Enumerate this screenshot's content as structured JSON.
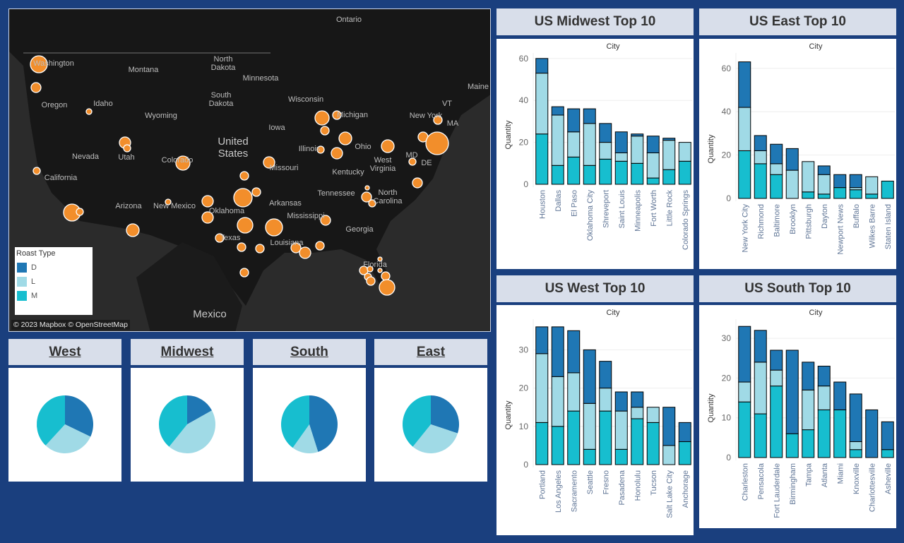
{
  "colors": {
    "background": "#1a3f7e",
    "D": "#1f77b4",
    "L": "#a0dae6",
    "M": "#17becf",
    "marker": "#f28e2b"
  },
  "map": {
    "labels": [
      "Ontario",
      "Washington",
      "Montana",
      "North Dakota",
      "Minnesota",
      "Wisconsin",
      "Michigan",
      "Oregon",
      "Idaho",
      "Wyoming",
      "South Dakota",
      "Iowa",
      "Nevada",
      "Utah",
      "Colorado",
      "Illinois",
      "Ohio",
      "West Virginia",
      "Kentucky",
      "Missouri",
      "California",
      "Tennessee",
      "North Carolina",
      "Arkansas",
      "Arizona",
      "New Mexico",
      "Oklahoma",
      "Mississippi",
      "Georgia",
      "Texas",
      "Louisiana",
      "Florida",
      "New York",
      "VT",
      "MA",
      "MD",
      "DE",
      "Maine",
      "Mexico"
    ],
    "country_label": "United States",
    "legend": {
      "title": "Roast Type",
      "items": [
        "D",
        "L",
        "M"
      ]
    },
    "attribution": "© 2023 Mapbox © OpenStreetMap"
  },
  "pies": [
    {
      "title": "West",
      "shares": {
        "D": 0.32,
        "L": 0.3,
        "M": 0.38
      }
    },
    {
      "title": "Midwest",
      "shares": {
        "D": 0.17,
        "L": 0.44,
        "M": 0.39
      }
    },
    {
      "title": "South",
      "shares": {
        "D": 0.45,
        "L": 0.15,
        "M": 0.4
      }
    },
    {
      "title": "East",
      "shares": {
        "D": 0.3,
        "L": 0.31,
        "M": 0.39
      }
    }
  ],
  "chart_data": [
    {
      "type": "bar",
      "stacked": true,
      "title": "US Midwest Top 10",
      "xlabel": "City",
      "ylabel": "Quantity",
      "ylim": [
        0,
        60
      ],
      "yticks": [
        0,
        20,
        40,
        60
      ],
      "categories": [
        "Houston",
        "Dallas",
        "El Paso",
        "Oklahoma City",
        "Shreveport",
        "Saint Louis",
        "Minneapolis",
        "Fort Worth",
        "Little Rock",
        "Colorado Springs"
      ],
      "series": [
        {
          "name": "M",
          "values": [
            24,
            9,
            13,
            9,
            12,
            11,
            10,
            3,
            7,
            11
          ]
        },
        {
          "name": "L",
          "values": [
            29,
            24,
            12,
            20,
            8,
            4,
            13,
            12,
            14,
            9
          ]
        },
        {
          "name": "D",
          "values": [
            7,
            4,
            11,
            7,
            9,
            10,
            1,
            8,
            1,
            0
          ]
        }
      ]
    },
    {
      "type": "bar",
      "stacked": true,
      "title": "US East Top 10",
      "xlabel": "City",
      "ylabel": "Quantity",
      "ylim": [
        0,
        63
      ],
      "yticks": [
        0,
        20,
        40,
        60
      ],
      "categories": [
        "New York City",
        "Richmond",
        "Baltimore",
        "Brooklyn",
        "Pittsburgh",
        "Dayton",
        "Newport News",
        "Buffalo",
        "Wilkes Barre",
        "Staten Island"
      ],
      "series": [
        {
          "name": "M",
          "values": [
            22,
            16,
            11,
            0,
            3,
            2,
            5,
            4,
            2,
            8
          ]
        },
        {
          "name": "L",
          "values": [
            20,
            6,
            5,
            13,
            14,
            9,
            0,
            1,
            8,
            0
          ]
        },
        {
          "name": "D",
          "values": [
            21,
            7,
            9,
            10,
            0,
            4,
            6,
            6,
            0,
            0
          ]
        }
      ]
    },
    {
      "type": "bar",
      "stacked": true,
      "title": "US West Top 10",
      "xlabel": "City",
      "ylabel": "Quantity",
      "ylim": [
        0,
        36
      ],
      "yticks": [
        0,
        10,
        20,
        30
      ],
      "categories": [
        "Portland",
        "Los Angeles",
        "Sacramento",
        "Seattle",
        "Fresno",
        "Pasadena",
        "Honolulu",
        "Tucson",
        "Salt Lake City",
        "Anchorage"
      ],
      "series": [
        {
          "name": "M",
          "values": [
            11,
            10,
            14,
            4,
            14,
            4,
            12,
            11,
            0,
            6
          ]
        },
        {
          "name": "L",
          "values": [
            18,
            13,
            10,
            12,
            6,
            10,
            3,
            4,
            5,
            0
          ]
        },
        {
          "name": "D",
          "values": [
            7,
            13,
            11,
            14,
            7,
            5,
            4,
            0,
            10,
            5
          ]
        }
      ]
    },
    {
      "type": "bar",
      "stacked": true,
      "title": "US South Top 10",
      "xlabel": "City",
      "ylabel": "Quantity",
      "ylim": [
        0,
        33
      ],
      "yticks": [
        0,
        10,
        20,
        30
      ],
      "categories": [
        "Charleston",
        "Pensacola",
        "Fort Lauderdale",
        "Birmingham",
        "Tampa",
        "Atlanta",
        "Miami",
        "Knoxville",
        "Charlottesville",
        "Asheville"
      ],
      "series": [
        {
          "name": "M",
          "values": [
            14,
            11,
            18,
            6,
            7,
            12,
            12,
            2,
            0,
            2
          ]
        },
        {
          "name": "L",
          "values": [
            5,
            13,
            4,
            0,
            10,
            6,
            0,
            2,
            0,
            0
          ]
        },
        {
          "name": "D",
          "values": [
            14,
            8,
            5,
            21,
            7,
            5,
            7,
            12,
            12,
            7
          ]
        }
      ]
    }
  ]
}
